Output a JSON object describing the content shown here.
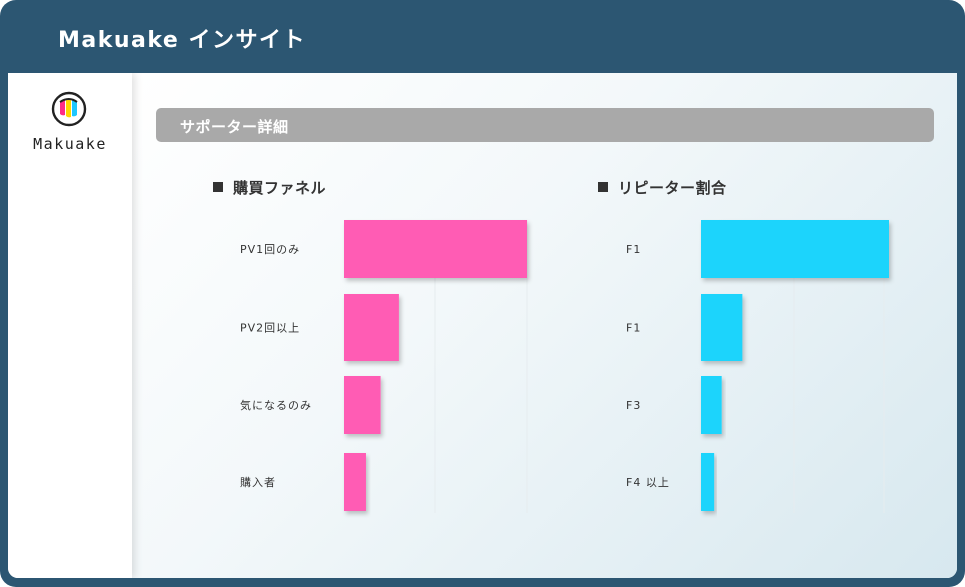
{
  "app": {
    "title": "Makuake インサイト"
  },
  "sidebar": {
    "logo_text": "Makuake"
  },
  "section": {
    "title": "サポーター詳細"
  },
  "colors": {
    "frame": "#2c5672",
    "funnel": "#ff5bb4",
    "repeater": "#1ed4fc",
    "section_bar": "#a9a9a9"
  },
  "chart_data": [
    {
      "type": "bar",
      "orientation": "horizontal",
      "title": "購買ファネル",
      "categories": [
        "PV1回のみ",
        "PV2回以上",
        "気になるのみ",
        "購入者"
      ],
      "values": [
        100,
        30,
        20,
        12
      ],
      "xlim": [
        0,
        110
      ],
      "grid": true
    },
    {
      "type": "bar",
      "orientation": "horizontal",
      "title": "リピーター割合",
      "categories": [
        "F1",
        "F1",
        "F3",
        "F4 以上"
      ],
      "values": [
        100,
        22,
        11,
        7
      ],
      "xlim": [
        0,
        100
      ],
      "grid": true
    }
  ]
}
